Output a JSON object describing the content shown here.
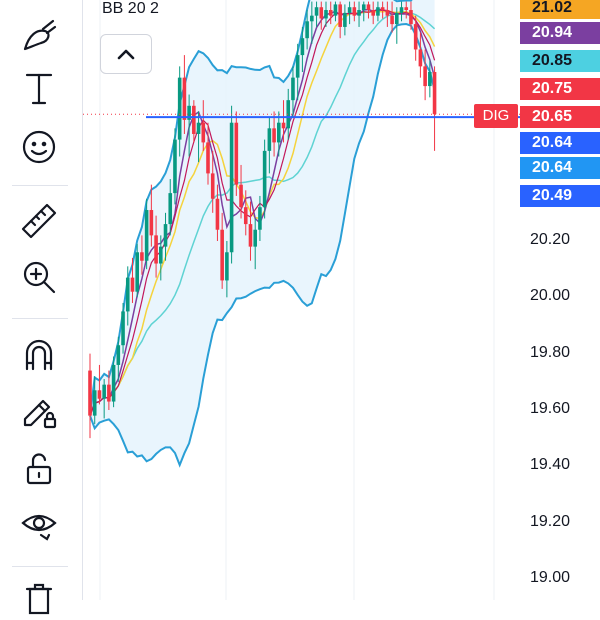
{
  "indicator": {
    "label": "BB 20 2"
  },
  "collapse_button": {
    "icon": "chevron-up-icon"
  },
  "toolbar": {
    "tools": [
      {
        "name": "brush-tool",
        "icon": "brush-icon"
      },
      {
        "name": "text-tool",
        "icon": "text-icon"
      },
      {
        "name": "emoji-tool",
        "icon": "smiley-icon"
      },
      {
        "name": "measure-tool",
        "icon": "ruler-icon"
      },
      {
        "name": "zoom-tool",
        "icon": "zoom-in-icon"
      },
      {
        "name": "magnet-tool",
        "icon": "magnet-icon"
      },
      {
        "name": "lock-drawing-tool",
        "icon": "pencil-lock-icon"
      },
      {
        "name": "lock-all-tool",
        "icon": "unlock-icon"
      },
      {
        "name": "hide-tool",
        "icon": "eye-icon"
      },
      {
        "name": "remove-tool",
        "icon": "trash-icon"
      }
    ]
  },
  "axis": {
    "ticks": [
      {
        "label": "20.20",
        "value": 20.2
      },
      {
        "label": "20.00",
        "value": 20.0
      },
      {
        "label": "19.80",
        "value": 19.8
      },
      {
        "label": "19.60",
        "value": 19.6
      },
      {
        "label": "19.40",
        "value": 19.4
      },
      {
        "label": "19.20",
        "value": 19.2
      },
      {
        "label": "19.00",
        "value": 19.0
      }
    ]
  },
  "price_badges": [
    {
      "label": "21.02",
      "value": 21.02,
      "color": "#f5a623"
    },
    {
      "label": "20.94",
      "value": 20.94,
      "color": "#7b3fa0"
    },
    {
      "label": "20.85",
      "value": 20.85,
      "color": "#4dd0e1"
    },
    {
      "label": "20.75",
      "value": 20.75,
      "color": "#f23645"
    },
    {
      "label": "20.65",
      "value": 20.65,
      "color": "#f23645"
    },
    {
      "label": "20.64",
      "value": 20.64,
      "color": "#2962ff"
    },
    {
      "label": "20.64",
      "value": 20.64,
      "color": "#2196f3"
    },
    {
      "label": "20.49",
      "value": 20.49,
      "color": "#2962ff"
    }
  ],
  "symbol_tag": {
    "label": "DIG",
    "color": "#f23645"
  },
  "colors": {
    "up": "#089981",
    "down": "#f23645",
    "bb_band": "#2a9fd6",
    "bb_fill": "#e3f2fd",
    "ma_yellow": "#f5d33d",
    "ma_purple": "#7b3fa0",
    "ma_cyan": "#5fd3d3",
    "ma_red": "#c2185b",
    "hline": "#2962ff"
  },
  "chart_data": {
    "type": "candlestick",
    "ylim": [
      18.95,
      21.05
    ],
    "horizontal_line": 20.64,
    "last_price": 20.65,
    "candles": [
      [
        19.74,
        19.8,
        19.5,
        19.58
      ],
      [
        19.58,
        19.72,
        19.55,
        19.67
      ],
      [
        19.67,
        19.76,
        19.62,
        19.64
      ],
      [
        19.64,
        19.71,
        19.57,
        19.69
      ],
      [
        19.69,
        19.74,
        19.6,
        19.63
      ],
      [
        19.63,
        19.79,
        19.61,
        19.76
      ],
      [
        19.76,
        19.86,
        19.7,
        19.83
      ],
      [
        19.83,
        19.98,
        19.8,
        19.95
      ],
      [
        19.95,
        20.11,
        19.9,
        20.07
      ],
      [
        20.07,
        20.14,
        19.98,
        20.02
      ],
      [
        20.02,
        20.19,
        20.0,
        20.16
      ],
      [
        20.16,
        20.22,
        20.08,
        20.13
      ],
      [
        20.13,
        20.35,
        20.1,
        20.31
      ],
      [
        20.31,
        20.4,
        20.18,
        20.22
      ],
      [
        20.22,
        20.29,
        20.07,
        20.12
      ],
      [
        20.12,
        20.22,
        20.06,
        20.18
      ],
      [
        20.18,
        20.3,
        20.13,
        20.26
      ],
      [
        20.26,
        20.42,
        20.22,
        20.37
      ],
      [
        20.37,
        20.6,
        20.33,
        20.56
      ],
      [
        20.56,
        20.82,
        20.5,
        20.78
      ],
      [
        20.78,
        20.86,
        20.58,
        20.63
      ],
      [
        20.63,
        20.72,
        20.5,
        20.68
      ],
      [
        20.68,
        20.7,
        20.55,
        20.58
      ],
      [
        20.58,
        20.66,
        20.48,
        20.62
      ],
      [
        20.62,
        20.7,
        20.52,
        20.55
      ],
      [
        20.55,
        20.62,
        20.4,
        20.44
      ],
      [
        20.44,
        20.52,
        20.3,
        20.35
      ],
      [
        20.35,
        20.4,
        20.2,
        20.24
      ],
      [
        20.24,
        20.3,
        20.03,
        20.06
      ],
      [
        20.06,
        20.2,
        20.0,
        20.16
      ],
      [
        20.16,
        20.68,
        20.12,
        20.62
      ],
      [
        20.62,
        20.66,
        20.36,
        20.4
      ],
      [
        20.4,
        20.47,
        20.28,
        20.32
      ],
      [
        20.32,
        20.38,
        20.22,
        20.26
      ],
      [
        20.26,
        20.34,
        20.13,
        20.18
      ],
      [
        20.18,
        20.28,
        20.1,
        20.24
      ],
      [
        20.24,
        20.36,
        20.2,
        20.32
      ],
      [
        20.32,
        20.56,
        20.28,
        20.52
      ],
      [
        20.52,
        20.64,
        20.44,
        20.6
      ],
      [
        20.6,
        20.66,
        20.5,
        20.55
      ],
      [
        20.55,
        20.66,
        20.5,
        20.62
      ],
      [
        20.62,
        20.7,
        20.55,
        20.6
      ],
      [
        20.6,
        20.74,
        20.56,
        20.7
      ],
      [
        20.7,
        20.82,
        20.64,
        20.78
      ],
      [
        20.78,
        20.9,
        20.7,
        20.86
      ],
      [
        20.86,
        20.96,
        20.8,
        20.92
      ],
      [
        20.92,
        21.02,
        20.88,
        20.98
      ],
      [
        20.98,
        21.05,
        20.9,
        21.0
      ],
      [
        21.0,
        21.05,
        20.96,
        21.03
      ],
      [
        21.03,
        21.05,
        20.95,
        20.99
      ],
      [
        20.99,
        21.05,
        20.96,
        21.02
      ],
      [
        21.02,
        21.05,
        20.97,
        21.0
      ],
      [
        21.0,
        21.05,
        20.98,
        21.04
      ],
      [
        21.04,
        21.05,
        20.92,
        20.96
      ],
      [
        20.96,
        21.04,
        20.93,
        21.01
      ],
      [
        21.01,
        21.05,
        20.97,
        21.03
      ],
      [
        21.03,
        21.05,
        20.98,
        21.0
      ],
      [
        21.0,
        21.05,
        20.96,
        21.02
      ],
      [
        21.02,
        21.05,
        20.98,
        21.04
      ],
      [
        21.04,
        21.05,
        20.99,
        21.02
      ],
      [
        21.02,
        21.05,
        20.97,
        21.0
      ],
      [
        21.0,
        21.05,
        20.98,
        21.03
      ],
      [
        21.03,
        21.05,
        20.99,
        21.02
      ],
      [
        21.02,
        21.05,
        20.96,
        21.0
      ],
      [
        21.0,
        21.05,
        20.94,
        20.97
      ],
      [
        20.97,
        21.03,
        20.9,
        21.01
      ],
      [
        21.01,
        21.05,
        20.98,
        21.03
      ],
      [
        21.03,
        21.05,
        20.99,
        21.02
      ],
      [
        21.02,
        21.05,
        20.95,
        20.97
      ],
      [
        20.97,
        21.0,
        20.84,
        20.88
      ],
      [
        20.88,
        20.94,
        20.78,
        20.82
      ],
      [
        20.82,
        20.88,
        20.7,
        20.75
      ],
      [
        20.75,
        20.84,
        20.71,
        20.8
      ],
      [
        20.8,
        20.82,
        20.52,
        20.65
      ]
    ]
  }
}
